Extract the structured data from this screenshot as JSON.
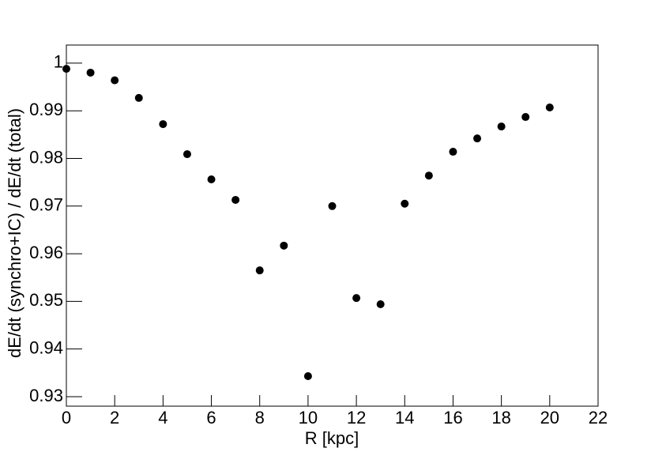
{
  "chart_data": {
    "type": "scatter",
    "x_label": "R [kpc]",
    "y_label": "dE/dt (synchro+IC) / dE/dt (total)",
    "x": [
      0,
      1,
      2,
      3,
      4,
      5,
      6,
      7,
      8,
      9,
      10,
      11,
      12,
      13,
      14,
      15,
      16,
      17,
      18,
      19,
      20
    ],
    "values": [
      0.9988,
      0.998,
      0.9964,
      0.9927,
      0.9872,
      0.9809,
      0.9756,
      0.9713,
      0.9565,
      0.9617,
      0.9343,
      0.97,
      0.9507,
      0.9494,
      0.9705,
      0.9764,
      0.9814,
      0.9842,
      0.9867,
      0.9887,
      0.9907
    ],
    "color": "#000000",
    "xlim": [
      0,
      22
    ],
    "xticks": [
      0,
      2,
      4,
      6,
      8,
      10,
      12,
      14,
      16,
      18,
      20,
      22
    ],
    "ylim": [
      0.928,
      1.0038
    ],
    "yticks": [
      0.93,
      0.94,
      0.95,
      0.96,
      0.97,
      0.98,
      0.99,
      1
    ],
    "grid": false
  }
}
